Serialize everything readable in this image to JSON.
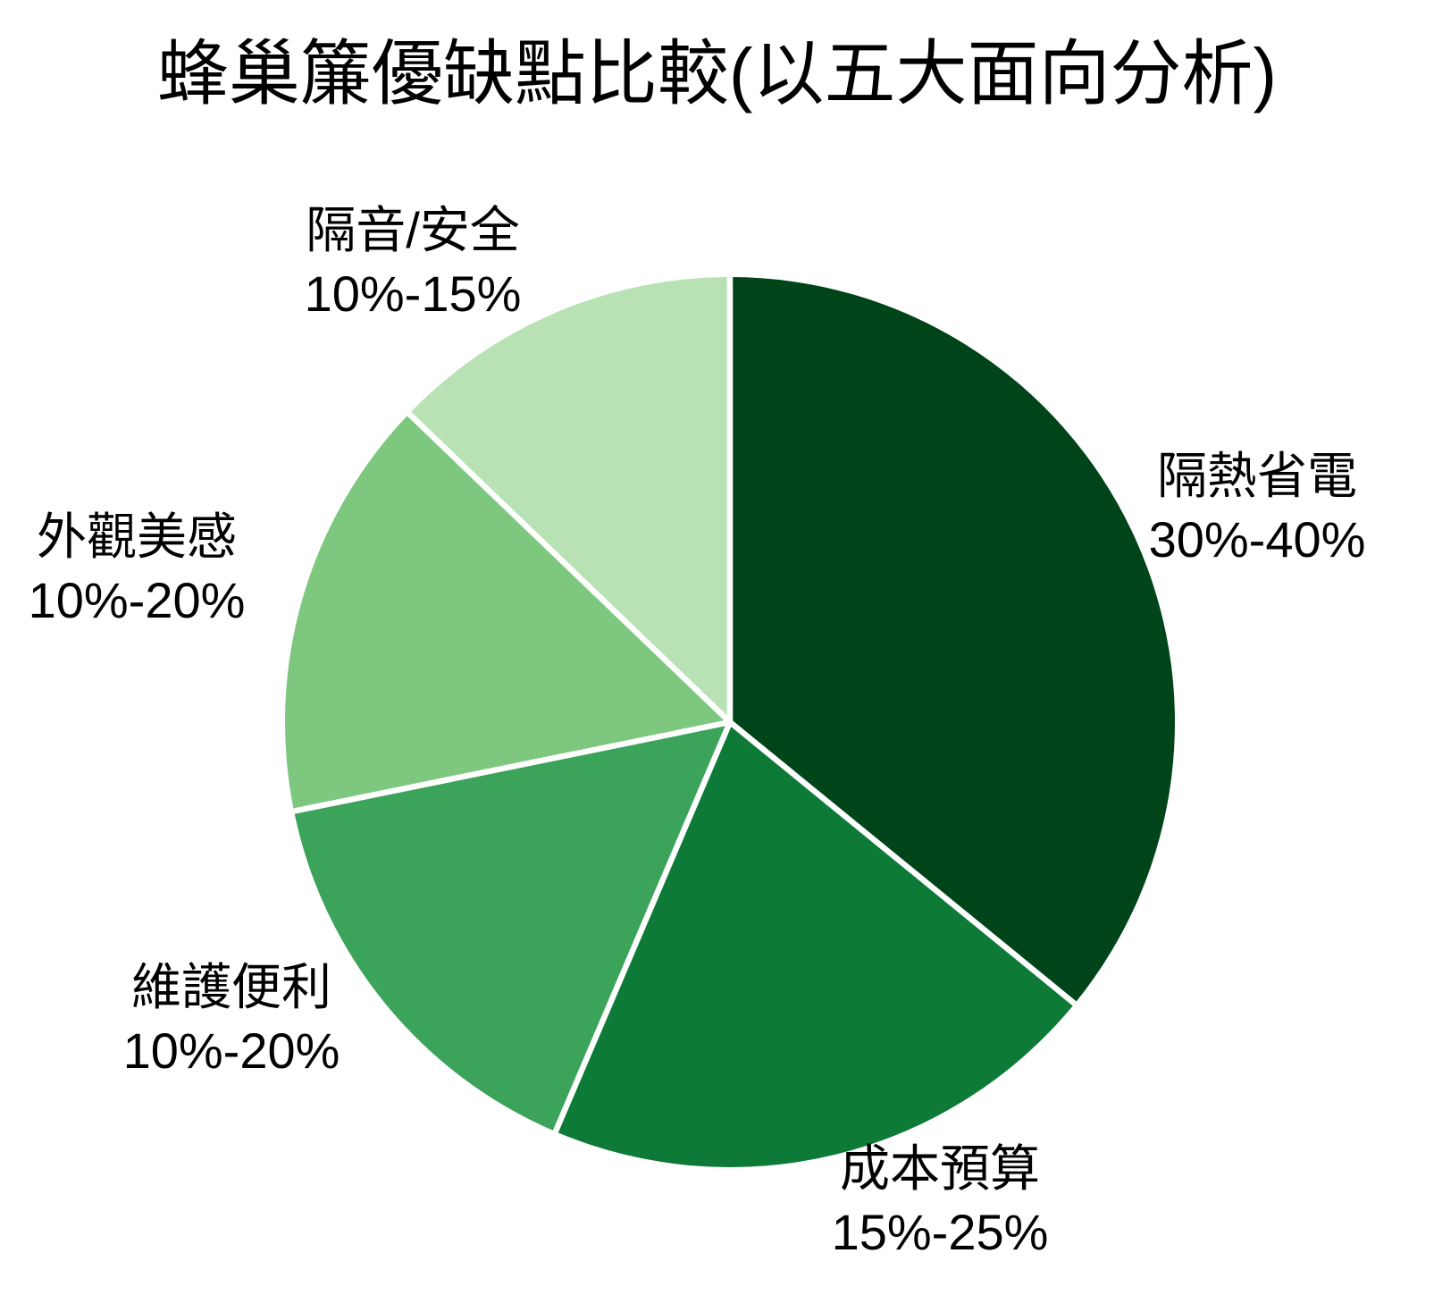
{
  "chart_data": {
    "type": "pie",
    "title": "蜂巢簾優缺點比較(以五大面向分析)",
    "start_angle": "top",
    "direction": "clockwise",
    "background": "#ffffff",
    "label_color": "#000000",
    "slice_border_color": "#ffffff",
    "slices": [
      {
        "label": "隔熱省電",
        "range": "30%-40%",
        "value": 35,
        "color": "#004419"
      },
      {
        "label": "成本預算",
        "range": "15%-25%",
        "value": 20,
        "color": "#0d7a37"
      },
      {
        "label": "維護便利",
        "range": "10%-20%",
        "value": 15,
        "color": "#3ba35a"
      },
      {
        "label": "外觀美感",
        "range": "10%-20%",
        "value": 15,
        "color": "#7dc87e"
      },
      {
        "label": "隔音/安全",
        "range": "10%-15%",
        "value": 12.5,
        "color": "#b8e2b4"
      }
    ]
  }
}
